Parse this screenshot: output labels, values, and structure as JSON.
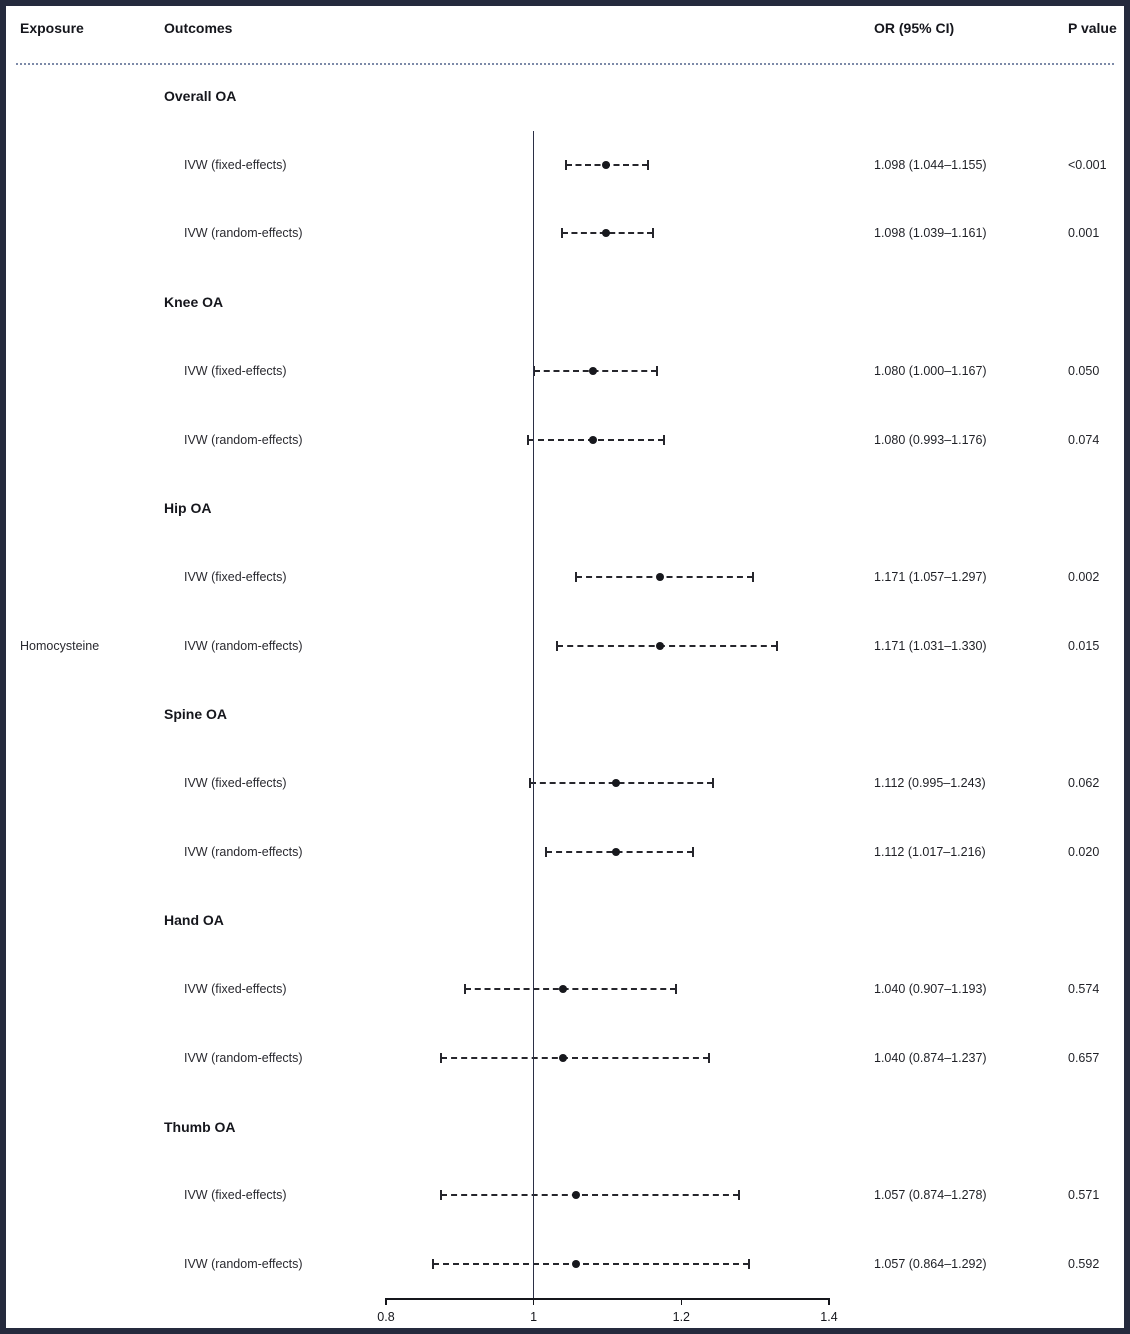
{
  "header": {
    "exposure": "Exposure",
    "outcomes": "Outcomes",
    "or_ci": "OR (95% CI)",
    "p_value": "P value"
  },
  "exposure_label": "Homocysteine",
  "chart_data": {
    "type": "forest",
    "title": "",
    "xlabel": "",
    "axis": {
      "xlim": [
        0.8,
        1.4
      ],
      "ticks": [
        0.8,
        1.0,
        1.2,
        1.4
      ],
      "tick_labels": [
        "0.8",
        "1",
        "1.2",
        "1.4"
      ],
      "reference_line": 1.0,
      "grid": false
    },
    "groups": [
      {
        "label": "Overall OA",
        "rows": [
          {
            "label": "IVW (fixed-effects)",
            "or": 1.098,
            "low": 1.044,
            "high": 1.155,
            "or_ci": "1.098 (1.044–1.155)",
            "p": "<0.001"
          },
          {
            "label": "IVW (random-effects)",
            "or": 1.098,
            "low": 1.039,
            "high": 1.161,
            "or_ci": "1.098 (1.039–1.161)",
            "p": "0.001"
          }
        ]
      },
      {
        "label": "Knee OA",
        "rows": [
          {
            "label": "IVW (fixed-effects)",
            "or": 1.08,
            "low": 1.0,
            "high": 1.167,
            "or_ci": "1.080 (1.000–1.167)",
            "p": "0.050"
          },
          {
            "label": "IVW (random-effects)",
            "or": 1.08,
            "low": 0.993,
            "high": 1.176,
            "or_ci": "1.080 (0.993–1.176)",
            "p": "0.074"
          }
        ]
      },
      {
        "label": "Hip OA",
        "rows": [
          {
            "label": "IVW (fixed-effects)",
            "or": 1.171,
            "low": 1.057,
            "high": 1.297,
            "or_ci": "1.171 (1.057–1.297)",
            "p": "0.002"
          },
          {
            "label": "IVW (random-effects)",
            "or": 1.171,
            "low": 1.031,
            "high": 1.33,
            "or_ci": "1.171 (1.031–1.330)",
            "p": "0.015"
          }
        ]
      },
      {
        "label": "Spine OA",
        "rows": [
          {
            "label": "IVW (fixed-effects)",
            "or": 1.112,
            "low": 0.995,
            "high": 1.243,
            "or_ci": "1.112 (0.995–1.243)",
            "p": "0.062"
          },
          {
            "label": "IVW (random-effects)",
            "or": 1.112,
            "low": 1.017,
            "high": 1.216,
            "or_ci": "1.112 (1.017–1.216)",
            "p": "0.020"
          }
        ]
      },
      {
        "label": "Hand OA",
        "rows": [
          {
            "label": "IVW (fixed-effects)",
            "or": 1.04,
            "low": 0.907,
            "high": 1.193,
            "or_ci": "1.040 (0.907–1.193)",
            "p": "0.574"
          },
          {
            "label": "IVW (random-effects)",
            "or": 1.04,
            "low": 0.874,
            "high": 1.237,
            "or_ci": "1.040 (0.874–1.237)",
            "p": "0.657"
          }
        ]
      },
      {
        "label": "Thumb OA",
        "rows": [
          {
            "label": "IVW (fixed-effects)",
            "or": 1.057,
            "low": 0.874,
            "high": 1.278,
            "or_ci": "1.057 (0.874–1.278)",
            "p": "0.571"
          },
          {
            "label": "IVW (random-effects)",
            "or": 1.057,
            "low": 0.864,
            "high": 1.292,
            "or_ci": "1.057 (0.864–1.292)",
            "p": "0.592"
          }
        ]
      }
    ]
  }
}
